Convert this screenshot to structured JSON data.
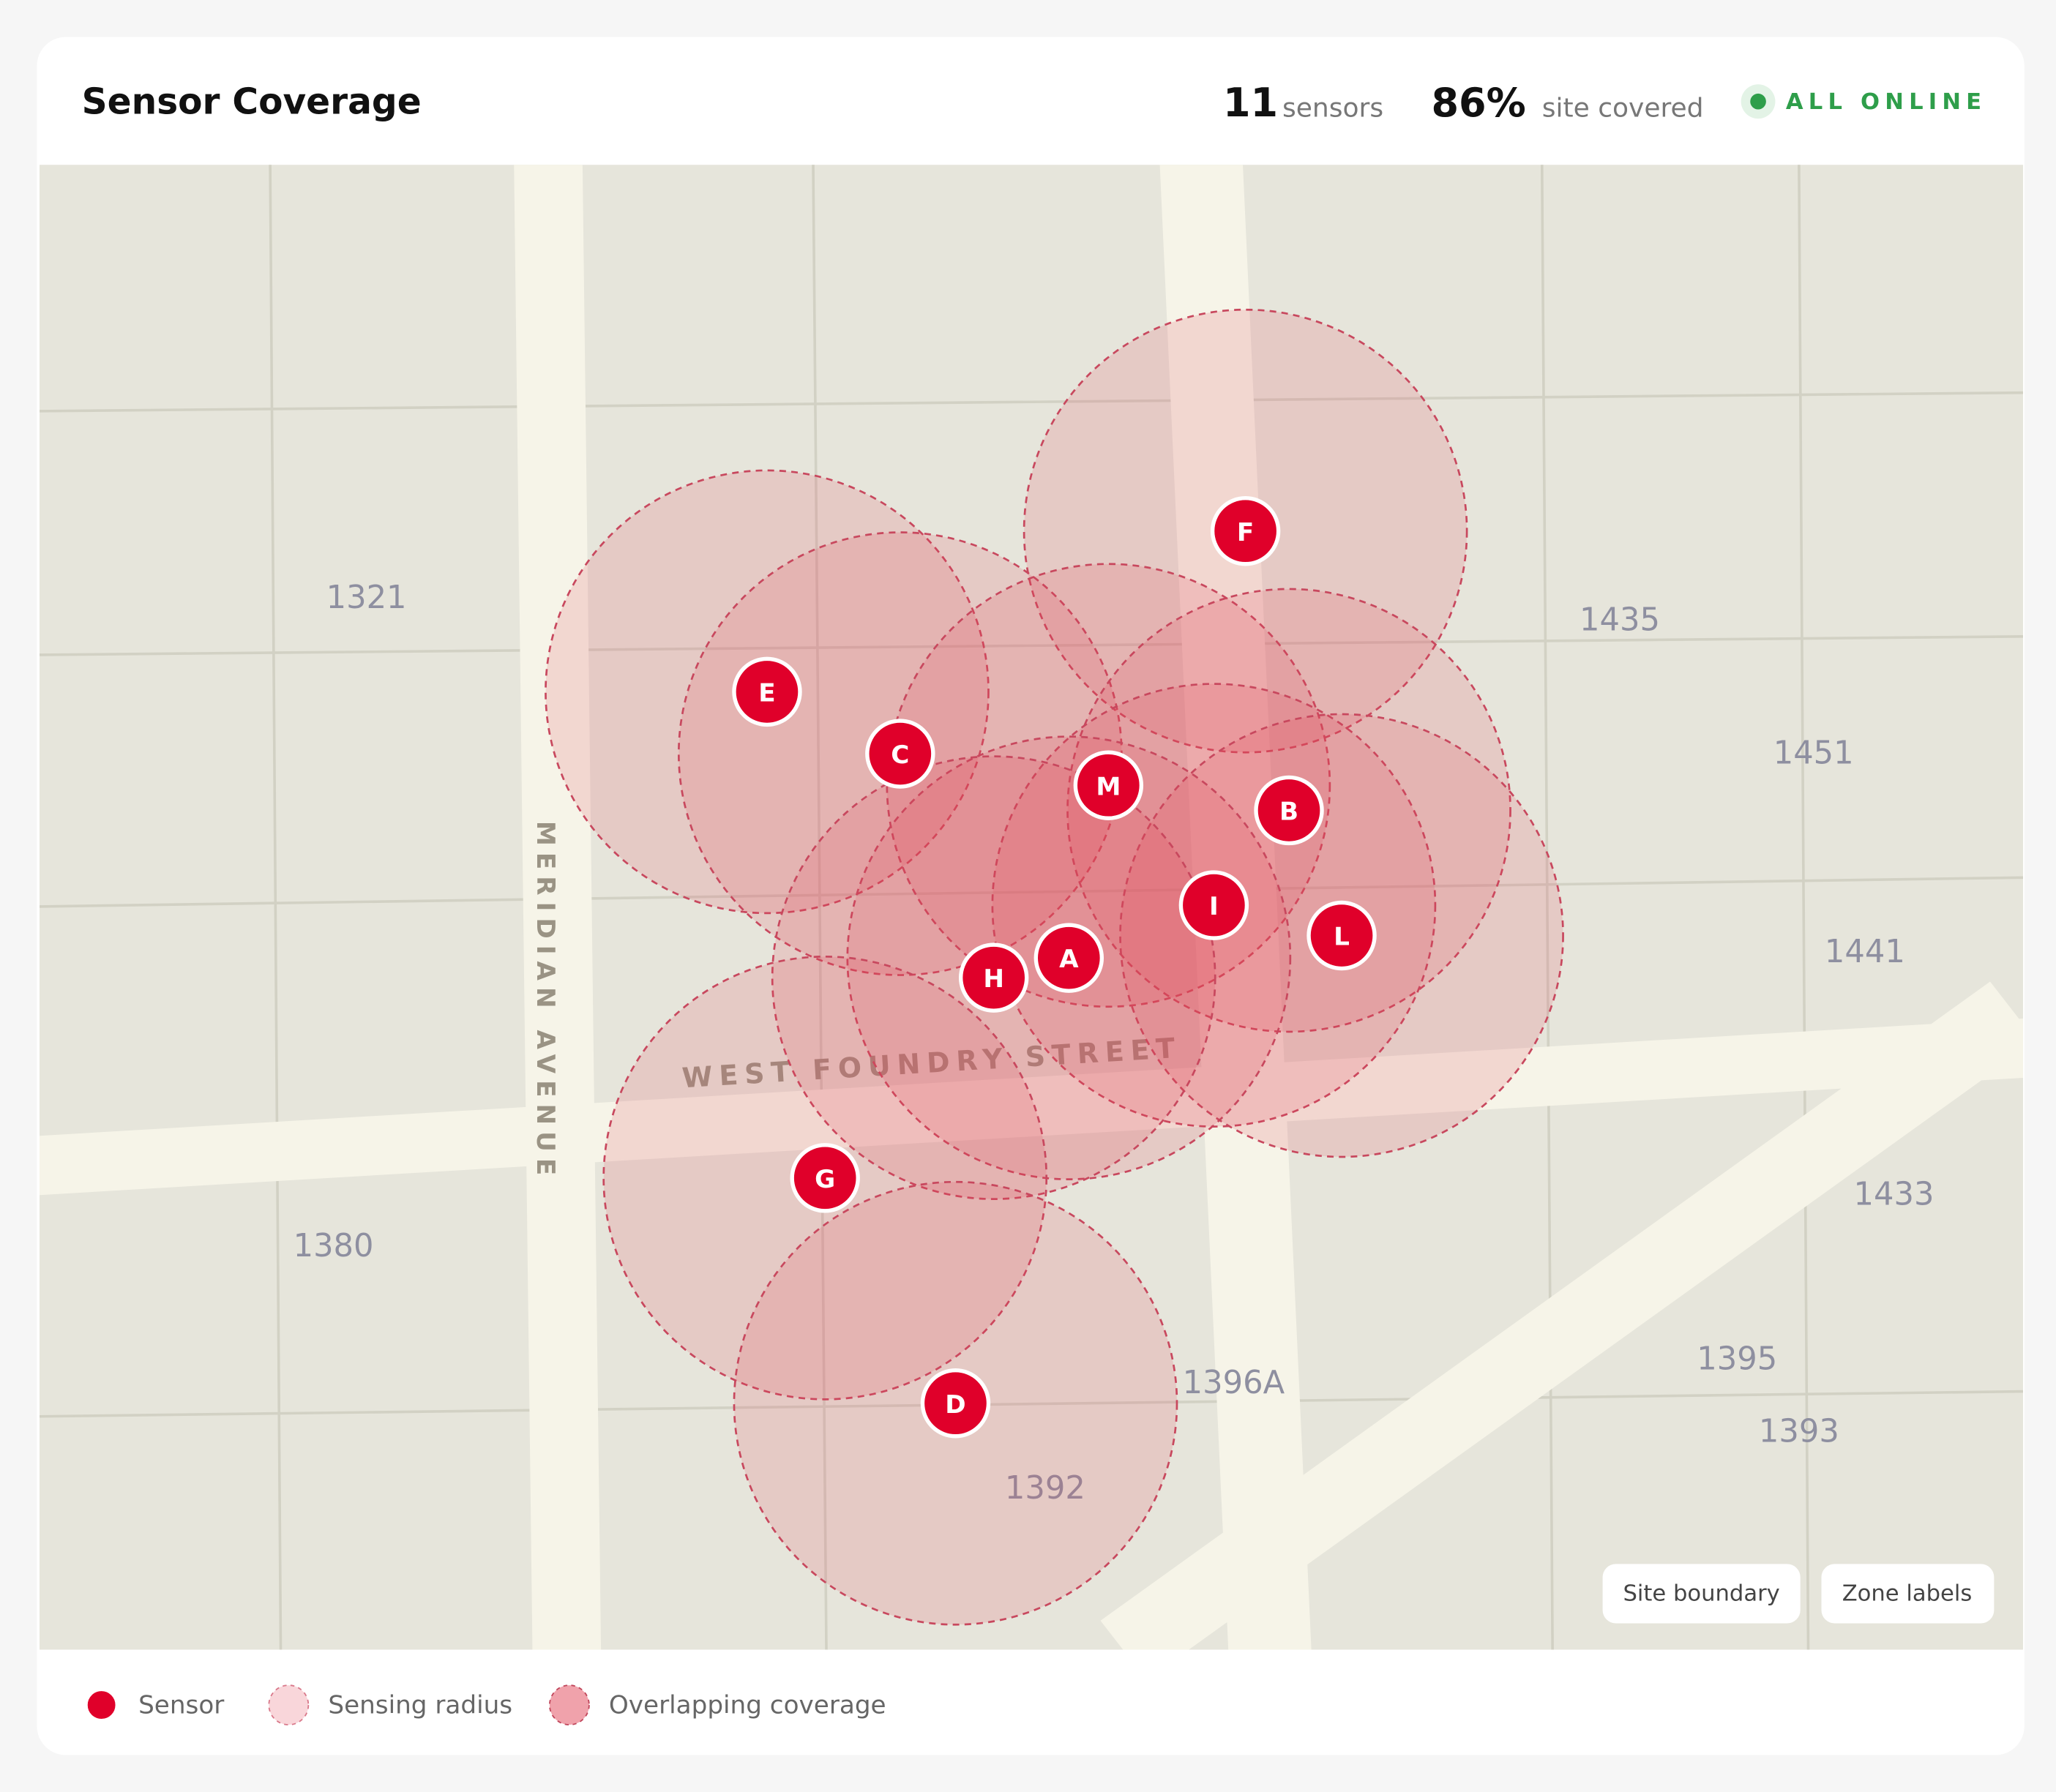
{
  "header": {
    "title": "Sensor Coverage",
    "stats": [
      {
        "value": 11,
        "label": "sensors"
      },
      {
        "value": "86%",
        "label": "site covered"
      }
    ],
    "status": "ALL ONLINE"
  },
  "map": {
    "streets": [
      "MERIDIAN AVENUE",
      "WEST FOUNDRY STREET"
    ],
    "lots": [
      "1321",
      "1435",
      "1451",
      "1441",
      "1433",
      "1380",
      "1396A",
      "1395",
      "1393",
      "1392"
    ],
    "sensors": [
      "F",
      "E",
      "C",
      "M",
      "B",
      "I",
      "L",
      "A",
      "H",
      "G",
      "D"
    ],
    "buttons": [
      "Site boundary",
      "Zone labels"
    ]
  },
  "legend": [
    "Sensor",
    "Sensing radius",
    "Overlapping coverage"
  ]
}
